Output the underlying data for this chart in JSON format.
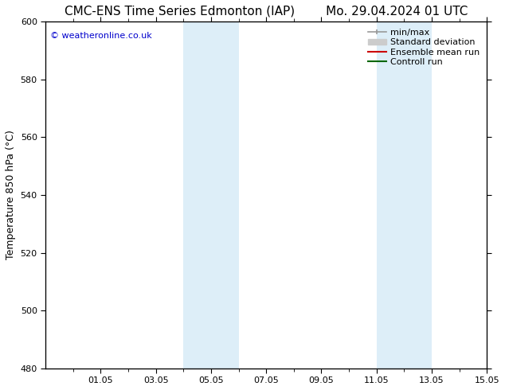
{
  "title_left": "CMC-ENS Time Series Edmonton (IAP)",
  "title_right": "Mo. 29.04.2024 01 UTC",
  "ylabel": "Temperature 850 hPa (°C)",
  "ylim": [
    480,
    600
  ],
  "yticks": [
    480,
    500,
    520,
    540,
    560,
    580,
    600
  ],
  "x_min": 0,
  "x_max": 16,
  "xtick_labels": [
    "01.05",
    "03.05",
    "05.05",
    "07.05",
    "09.05",
    "11.05",
    "13.05",
    "15.05"
  ],
  "xtick_positions": [
    2,
    4,
    6,
    8,
    10,
    12,
    14,
    16
  ],
  "minor_xtick_positions": [
    1,
    3,
    5,
    7,
    9,
    11,
    13,
    15
  ],
  "watermark": "© weatheronline.co.uk",
  "watermark_color": "#0000cc",
  "shaded_regions": [
    {
      "x_start": 5,
      "x_end": 6,
      "color": "#ddeef8"
    },
    {
      "x_start": 6,
      "x_end": 7,
      "color": "#ddeef8"
    },
    {
      "x_start": 12,
      "x_end": 13,
      "color": "#ddeef8"
    },
    {
      "x_start": 13,
      "x_end": 14,
      "color": "#ddeef8"
    }
  ],
  "legend_entries": [
    {
      "label": "min/max",
      "color": "#999999"
    },
    {
      "label": "Standard deviation",
      "color": "#cccccc"
    },
    {
      "label": "Ensemble mean run",
      "color": "#cc0000"
    },
    {
      "label": "Controll run",
      "color": "#006600"
    }
  ],
  "bg_color": "#ffffff",
  "tick_label_fontsize": 8,
  "title_fontsize": 11,
  "ylabel_fontsize": 9,
  "legend_fontsize": 8
}
